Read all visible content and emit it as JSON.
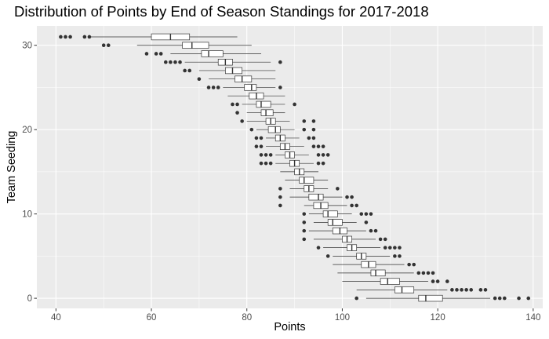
{
  "chart_data": {
    "type": "boxplot",
    "orientation": "horizontal",
    "title": "Distribution of Points by End of Season Standings for 2017-2018",
    "xlabel": "Points",
    "ylabel": "Team Seeding",
    "xlim": [
      36,
      142
    ],
    "ylim": [
      -1.2,
      32.3
    ],
    "x_ticks": [
      40,
      60,
      80,
      100,
      120,
      140
    ],
    "y_ticks": [
      0,
      10,
      20,
      30
    ],
    "grid": true,
    "legend": "none",
    "colors": {
      "panel": "#ebebeb",
      "grid": "#ffffff",
      "box_fill": "#ffffff",
      "outline": "#333333",
      "outlier": "#333333"
    },
    "boxes": [
      {
        "seed": 1,
        "whisker_low": 105,
        "q1": 116,
        "median": 117.5,
        "q3": 121,
        "whisker_high": 131,
        "outliers": [
          103,
          132,
          133,
          134,
          137,
          139
        ]
      },
      {
        "seed": 2,
        "whisker_low": 103,
        "q1": 111,
        "median": 112.5,
        "q3": 115,
        "whisker_high": 122,
        "outliers": [
          123,
          124,
          125,
          126,
          127,
          129,
          130
        ]
      },
      {
        "seed": 3,
        "whisker_low": 100,
        "q1": 108,
        "median": 109.5,
        "q3": 112,
        "whisker_high": 118,
        "outliers": [
          119,
          120,
          122
        ]
      },
      {
        "seed": 4,
        "whisker_low": 99,
        "q1": 106,
        "median": 107,
        "q3": 109,
        "whisker_high": 115,
        "outliers": [
          116,
          117,
          118,
          119
        ]
      },
      {
        "seed": 5,
        "whisker_low": 98,
        "q1": 104,
        "median": 105.5,
        "q3": 107,
        "whisker_high": 113,
        "outliers": [
          114,
          115
        ]
      },
      {
        "seed": 6,
        "whisker_low": 98,
        "q1": 103,
        "median": 104,
        "q3": 105,
        "whisker_high": 110,
        "outliers": [
          97,
          111,
          112
        ]
      },
      {
        "seed": 7,
        "whisker_low": 96,
        "q1": 101,
        "median": 102,
        "q3": 103,
        "whisker_high": 108,
        "outliers": [
          95,
          109,
          110,
          111,
          112
        ]
      },
      {
        "seed": 8,
        "whisker_low": 94,
        "q1": 100,
        "median": 101,
        "q3": 102,
        "whisker_high": 107,
        "outliers": [
          92,
          108,
          109
        ]
      },
      {
        "seed": 9,
        "whisker_low": 93,
        "q1": 98,
        "median": 99.5,
        "q3": 101,
        "whisker_high": 105,
        "outliers": [
          92,
          106,
          107
        ]
      },
      {
        "seed": 10,
        "whisker_low": 94,
        "q1": 97,
        "median": 98,
        "q3": 100,
        "whisker_high": 103,
        "outliers": [
          92,
          105
        ]
      },
      {
        "seed": 11,
        "whisker_low": 93,
        "q1": 96,
        "median": 97,
        "q3": 99,
        "whisker_high": 102,
        "outliers": [
          92,
          104,
          105,
          106
        ]
      },
      {
        "seed": 12,
        "whisker_low": 92,
        "q1": 94,
        "median": 95.5,
        "q3": 97,
        "whisker_high": 101,
        "outliers": [
          87,
          102,
          103
        ]
      },
      {
        "seed": 13,
        "whisker_low": 89,
        "q1": 93,
        "median": 95,
        "q3": 96,
        "whisker_high": 100,
        "outliers": [
          87,
          101,
          102
        ]
      },
      {
        "seed": 14,
        "whisker_low": 89,
        "q1": 92,
        "median": 93,
        "q3": 94,
        "whisker_high": 97,
        "outliers": [
          87,
          99
        ]
      },
      {
        "seed": 15,
        "whisker_low": 88,
        "q1": 91,
        "median": 92,
        "q3": 94,
        "whisker_high": 97,
        "outliers": []
      },
      {
        "seed": 16,
        "whisker_low": 87,
        "q1": 90,
        "median": 91,
        "q3": 92,
        "whisker_high": 95,
        "outliers": []
      },
      {
        "seed": 17,
        "whisker_low": 86,
        "q1": 89,
        "median": 90,
        "q3": 91,
        "whisker_high": 94,
        "outliers": [
          83,
          84,
          85,
          95,
          96
        ]
      },
      {
        "seed": 18,
        "whisker_low": 86,
        "q1": 88,
        "median": 89,
        "q3": 90,
        "whisker_high": 93,
        "outliers": [
          83,
          84,
          85,
          95,
          96,
          97
        ]
      },
      {
        "seed": 19,
        "whisker_low": 84,
        "q1": 87,
        "median": 88,
        "q3": 89,
        "whisker_high": 92,
        "outliers": [
          82,
          83,
          94,
          95,
          96
        ]
      },
      {
        "seed": 20,
        "whisker_low": 84,
        "q1": 86,
        "median": 87,
        "q3": 88,
        "whisker_high": 91,
        "outliers": [
          82,
          83,
          93,
          94
        ]
      },
      {
        "seed": 21,
        "whisker_low": 82,
        "q1": 84.5,
        "median": 86,
        "q3": 87,
        "whisker_high": 90,
        "outliers": [
          81,
          92,
          94
        ]
      },
      {
        "seed": 22,
        "whisker_low": 80,
        "q1": 84,
        "median": 85,
        "q3": 86,
        "whisker_high": 89,
        "outliers": [
          79,
          92,
          94
        ]
      },
      {
        "seed": 23,
        "whisker_low": 80,
        "q1": 83,
        "median": 84,
        "q3": 85.5,
        "whisker_high": 88,
        "outliers": [
          78
        ]
      },
      {
        "seed": 24,
        "whisker_low": 79,
        "q1": 82,
        "median": 83,
        "q3": 85,
        "whisker_high": 88,
        "outliers": [
          77,
          78,
          90
        ]
      },
      {
        "seed": 25,
        "whisker_low": 76,
        "q1": 80.5,
        "median": 82,
        "q3": 83.5,
        "whisker_high": 88,
        "outliers": []
      },
      {
        "seed": 26,
        "whisker_low": 75,
        "q1": 79.5,
        "median": 81,
        "q3": 82,
        "whisker_high": 86,
        "outliers": [
          72,
          73,
          74,
          87
        ]
      },
      {
        "seed": 27,
        "whisker_low": 72,
        "q1": 77.5,
        "median": 79,
        "q3": 81,
        "whisker_high": 86,
        "outliers": [
          70
        ]
      },
      {
        "seed": 28,
        "whisker_low": 70,
        "q1": 75.5,
        "median": 77,
        "q3": 79,
        "whisker_high": 86,
        "outliers": [
          67,
          68
        ]
      },
      {
        "seed": 29,
        "whisker_low": 67,
        "q1": 74,
        "median": 75.5,
        "q3": 77,
        "whisker_high": 85,
        "outliers": [
          63,
          64,
          65,
          66,
          87
        ]
      },
      {
        "seed": 30,
        "whisker_low": 64,
        "q1": 70.5,
        "median": 72,
        "q3": 75,
        "whisker_high": 83,
        "outliers": [
          59,
          61,
          62
        ]
      },
      {
        "seed": 31,
        "whisker_low": 57,
        "q1": 66.5,
        "median": 68.5,
        "q3": 72,
        "whisker_high": 81,
        "outliers": [
          50,
          51
        ]
      },
      {
        "seed": 32,
        "whisker_low": 47,
        "q1": 60,
        "median": 64,
        "q3": 68,
        "whisker_high": 78,
        "outliers": [
          41,
          42,
          43,
          46,
          47
        ]
      }
    ]
  }
}
